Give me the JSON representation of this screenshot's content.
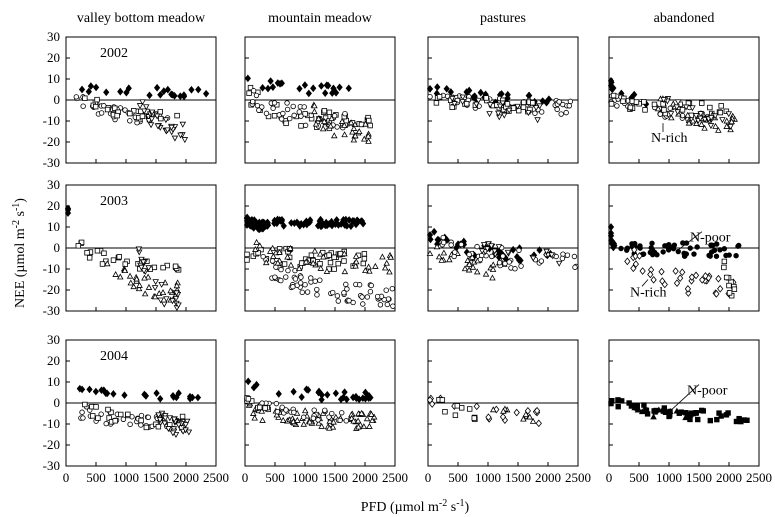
{
  "figure": {
    "ylabel_main": "NEE (µmol m",
    "ylabel_sup1": "-2",
    "ylabel_mid": " s",
    "ylabel_sup2": "-1",
    "ylabel_end": ")",
    "xlabel_main": "PFD (µmol m",
    "xlabel_sup1": "-2",
    "xlabel_mid": " s",
    "xlabel_sup2": "-1",
    "xlabel_end": ")"
  },
  "chart_data": {
    "type": "scatter",
    "columns": [
      "valley bottom meadow",
      "mountain meadow",
      "pastures",
      "abandoned"
    ],
    "years": [
      "2002",
      "2003",
      "2004"
    ],
    "xlim": [
      0,
      2500
    ],
    "ylim": [
      -30,
      30
    ],
    "x_ticks": [
      0,
      500,
      1000,
      1500,
      2000,
      2500
    ],
    "y_ticks": [
      -30,
      -20,
      -10,
      0,
      10,
      20,
      30
    ],
    "zero_reference_line": 0,
    "grid": false,
    "annotations": [
      {
        "column": 3,
        "year": 0,
        "text": "N-rich",
        "x": 700,
        "y": -20,
        "arrow_to": [
          900,
          -11
        ]
      },
      {
        "column": 3,
        "year": 1,
        "text": "N-poor",
        "x": 1350,
        "y": 3,
        "arrow_to": [
          1150,
          -1
        ]
      },
      {
        "column": 3,
        "year": 1,
        "text": "N-rich",
        "x": 350,
        "y": -23,
        "arrow_to": [
          650,
          -15
        ]
      },
      {
        "column": 3,
        "year": 2,
        "text": "N-poor",
        "x": 1300,
        "y": 4,
        "arrow_to": [
          1050,
          -3
        ]
      }
    ],
    "panels": [
      {
        "column": 0,
        "year": 0,
        "groups": [
          {
            "marker": "diamond-filled",
            "base": [
              6,
              3,
              -1.5
            ],
            "region": [
              0,
              2400
            ],
            "count": 22
          },
          {
            "marker": "circle-open",
            "base": [
              1,
              -9,
              -2
            ],
            "region": [
              150,
              1700
            ],
            "count": 35
          },
          {
            "marker": "square-open",
            "base": [
              2,
              -9,
              -1.5
            ],
            "region": [
              300,
              1900
            ],
            "count": 25
          },
          {
            "marker": "triangle-down-open",
            "base": [
              0,
              -16,
              -2.5
            ],
            "region": [
              1200,
              2000
            ],
            "count": 30
          }
        ]
      },
      {
        "column": 1,
        "year": 0,
        "groups": [
          {
            "marker": "diamond-filled",
            "base": [
              10,
              4,
              -1.5
            ],
            "region": [
              0,
              1900
            ],
            "count": 22
          },
          {
            "marker": "square-open",
            "base": [
              3,
              -12,
              -3
            ],
            "region": [
              0,
              2100
            ],
            "count": 40
          },
          {
            "marker": "circle-open",
            "base": [
              2,
              -10,
              -3
            ],
            "region": [
              100,
              1800
            ],
            "count": 35
          },
          {
            "marker": "triangle-up-open",
            "base": [
              0,
              -17,
              -3
            ],
            "region": [
              1000,
              2100
            ],
            "count": 30
          }
        ]
      },
      {
        "column": 2,
        "year": 0,
        "groups": [
          {
            "marker": "diamond-filled",
            "base": [
              6,
              0,
              -1.5
            ],
            "region": [
              0,
              2100
            ],
            "count": 30
          },
          {
            "marker": "circle-open",
            "base": [
              3,
              -4,
              -2
            ],
            "region": [
              0,
              2400
            ],
            "count": 45
          },
          {
            "marker": "square-open",
            "base": [
              2,
              -3,
              -2
            ],
            "region": [
              0,
              1800
            ],
            "count": 30
          },
          {
            "marker": "triangle-down-open",
            "base": [
              1,
              -6,
              -2.5
            ],
            "region": [
              400,
              2000
            ],
            "count": 20
          }
        ]
      },
      {
        "column": 3,
        "year": 0,
        "groups": [
          {
            "marker": "diamond-filled",
            "base": [
              8,
              -1,
              -1.5
            ],
            "region": [
              0,
              700
            ],
            "count": 10
          },
          {
            "marker": "circle-open",
            "base": [
              2,
              -7,
              -2
            ],
            "region": [
              0,
              1800
            ],
            "count": 35
          },
          {
            "marker": "square-open",
            "base": [
              1,
              -5,
              -2
            ],
            "region": [
              0,
              2000
            ],
            "count": 30
          },
          {
            "marker": "triangle-up-open",
            "base": [
              0,
              -12,
              -2.5
            ],
            "region": [
              800,
              2100
            ],
            "count": 30
          },
          {
            "marker": "triangle-down-open",
            "base": [
              0,
              -10,
              -2.5
            ],
            "region": [
              900,
              2100
            ],
            "count": 25
          }
        ]
      },
      {
        "column": 0,
        "year": 1,
        "groups": [
          {
            "marker": "diamond-filled",
            "base": [
              18,
              18,
              -1
            ],
            "region": [
              0,
              30
            ],
            "count": 3
          },
          {
            "marker": "square-open",
            "base": [
              1,
              -10,
              -2
            ],
            "region": [
              200,
              2000
            ],
            "count": 30
          },
          {
            "marker": "triangle-up-open",
            "base": [
              0,
              -22,
              -3
            ],
            "region": [
              600,
              1900
            ],
            "count": 30
          },
          {
            "marker": "triangle-down-open",
            "base": [
              0,
              -26,
              -3
            ],
            "region": [
              1200,
              1900
            ],
            "count": 25
          }
        ]
      },
      {
        "column": 1,
        "year": 1,
        "groups": [
          {
            "marker": "diamond-filled",
            "base": [
              12,
              12,
              -1
            ],
            "region": [
              0,
              2000
            ],
            "count": 80
          },
          {
            "marker": "diamond-filled",
            "base": [
              15,
              10,
              -1
            ],
            "region": [
              0,
              300
            ],
            "count": 30
          },
          {
            "marker": "square-open",
            "base": [
              -1,
              -6,
              -3
            ],
            "region": [
              0,
              2000
            ],
            "count": 50
          },
          {
            "marker": "circle-open",
            "base": [
              -4,
              -24,
              -3
            ],
            "region": [
              200,
              2500
            ],
            "count": 70
          },
          {
            "marker": "triangle-up-open",
            "base": [
              0,
              -8,
              -3
            ],
            "region": [
              100,
              2500
            ],
            "count": 40
          }
        ]
      },
      {
        "column": 2,
        "year": 1,
        "groups": [
          {
            "marker": "diamond-filled",
            "base": [
              6,
              -4,
              -2
            ],
            "region": [
              0,
              2100
            ],
            "count": 40
          },
          {
            "marker": "triangle-up-open",
            "base": [
              2,
              -11,
              -3
            ],
            "region": [
              0,
              1300
            ],
            "count": 30
          },
          {
            "marker": "circle-open",
            "base": [
              2,
              -7,
              -3
            ],
            "region": [
              200,
              2500
            ],
            "count": 40
          },
          {
            "marker": "triangle-down-open",
            "base": [
              1,
              -5,
              -2
            ],
            "region": [
              900,
              2200
            ],
            "count": 20
          }
        ]
      },
      {
        "column": 3,
        "year": 1,
        "groups": [
          {
            "marker": "diamond-filled",
            "base": [
              10,
              0,
              -1
            ],
            "region": [
              0,
              100
            ],
            "count": 15
          },
          {
            "marker": "circle-filled",
            "base": [
              0,
              -1,
              -2
            ],
            "region": [
              200,
              2200
            ],
            "count": 55
          },
          {
            "marker": "diamond-open",
            "base": [
              -2,
              -20,
              -3
            ],
            "region": [
              300,
              2100
            ],
            "count": 35
          },
          {
            "marker": "square-open",
            "base": [
              -2,
              -24,
              -3
            ],
            "region": [
              1900,
              2100
            ],
            "count": 10
          }
        ]
      },
      {
        "column": 0,
        "year": 2,
        "groups": [
          {
            "marker": "diamond-filled",
            "base": [
              6,
              3,
              -1
            ],
            "region": [
              200,
              2300
            ],
            "count": 22
          },
          {
            "marker": "circle-open",
            "base": [
              -3,
              -9,
              -2
            ],
            "region": [
              150,
              1700
            ],
            "count": 35
          },
          {
            "marker": "square-open",
            "base": [
              -2,
              -10,
              -2
            ],
            "region": [
              300,
              2000
            ],
            "count": 25
          },
          {
            "marker": "triangle-down-open",
            "base": [
              -6,
              -13,
              -2.5
            ],
            "region": [
              1500,
              2100
            ],
            "count": 30
          }
        ]
      },
      {
        "column": 1,
        "year": 2,
        "groups": [
          {
            "marker": "diamond-filled",
            "base": [
              9,
              3,
              -1.5
            ],
            "region": [
              0,
              2100
            ],
            "count": 30
          },
          {
            "marker": "triangle-up-open",
            "base": [
              -3,
              -9,
              -2.5
            ],
            "region": [
              0,
              2200
            ],
            "count": 70
          },
          {
            "marker": "circle-open",
            "base": [
              1,
              -6,
              -2
            ],
            "region": [
              0,
              1700
            ],
            "count": 30
          },
          {
            "marker": "square-open",
            "base": [
              2,
              -2,
              -1
            ],
            "region": [
              0,
              400
            ],
            "count": 10
          }
        ]
      },
      {
        "column": 2,
        "year": 2,
        "groups": [
          {
            "marker": "diamond-open",
            "base": [
              2,
              -7,
              -2
            ],
            "region": [
              0,
              1900
            ],
            "count": 18
          },
          {
            "marker": "square-open",
            "base": [
              1,
              -5,
              -2
            ],
            "region": [
              100,
              800
            ],
            "count": 10
          },
          {
            "marker": "triangle-up-open",
            "base": [
              -1,
              -10,
              -2
            ],
            "region": [
              1000,
              2100
            ],
            "count": 8
          }
        ]
      },
      {
        "column": 3,
        "year": 2,
        "groups": [
          {
            "marker": "square-filled",
            "base": [
              2,
              -7,
              -1.5
            ],
            "region": [
              0,
              2300
            ],
            "count": 50
          },
          {
            "marker": "triangle-up-filled",
            "base": [
              -2,
              -6,
              -1.5
            ],
            "region": [
              400,
              1300
            ],
            "count": 10
          }
        ]
      }
    ]
  }
}
